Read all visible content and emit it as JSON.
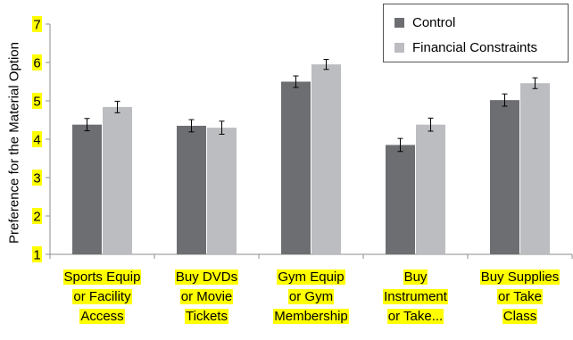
{
  "chart_data": {
    "type": "bar",
    "ylabel": "Preference for the Material Option",
    "ylim": [
      1,
      7
    ],
    "yticks": [
      "1",
      "2",
      "3",
      "4",
      "5",
      "6",
      "7"
    ],
    "categories": [
      [
        "Sports Equip",
        "or Facility",
        "Access"
      ],
      [
        "Buy DVDs",
        "or Movie",
        "Tickets"
      ],
      [
        "Gym Equip",
        "or Gym",
        "Membership"
      ],
      [
        "Buy",
        "Instrument",
        "or Take..."
      ],
      [
        "Buy Supplies",
        "or Take",
        "Class"
      ]
    ],
    "series": [
      {
        "name": "Control",
        "color": "#6d6e71",
        "values": [
          4.38,
          4.35,
          5.5,
          3.85,
          5.02
        ],
        "errors": [
          0.16,
          0.16,
          0.15,
          0.17,
          0.16
        ]
      },
      {
        "name": "Financial Constraints",
        "color": "#bcbdc0",
        "values": [
          4.84,
          4.3,
          5.95,
          4.38,
          5.46
        ],
        "errors": [
          0.15,
          0.17,
          0.13,
          0.17,
          0.14
        ]
      }
    ],
    "legend_position": "top-right",
    "grid": false,
    "tick_label_highlight": "#ffff00"
  }
}
